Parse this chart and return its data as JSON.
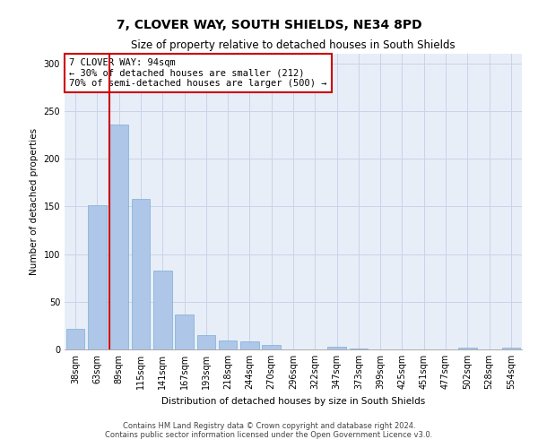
{
  "title": "7, CLOVER WAY, SOUTH SHIELDS, NE34 8PD",
  "subtitle": "Size of property relative to detached houses in South Shields",
  "xlabel": "Distribution of detached houses by size in South Shields",
  "ylabel": "Number of detached properties",
  "categories": [
    "38sqm",
    "63sqm",
    "89sqm",
    "115sqm",
    "141sqm",
    "167sqm",
    "193sqm",
    "218sqm",
    "244sqm",
    "270sqm",
    "296sqm",
    "322sqm",
    "347sqm",
    "373sqm",
    "399sqm",
    "425sqm",
    "451sqm",
    "477sqm",
    "502sqm",
    "528sqm",
    "554sqm"
  ],
  "values": [
    22,
    151,
    236,
    158,
    83,
    37,
    15,
    9,
    8,
    5,
    0,
    0,
    3,
    1,
    0,
    0,
    0,
    0,
    2,
    0,
    2
  ],
  "bar_color": "#aec6e8",
  "bar_edge_color": "#7aafd4",
  "grid_color": "#c8d4e8",
  "background_color": "#e8eef8",
  "vline_color": "#cc0000",
  "vline_x_index": 2,
  "annotation_text": "7 CLOVER WAY: 94sqm\n← 30% of detached houses are smaller (212)\n70% of semi-detached houses are larger (500) →",
  "annotation_box_facecolor": "#ffffff",
  "annotation_box_edgecolor": "#cc0000",
  "footer": "Contains HM Land Registry data © Crown copyright and database right 2024.\nContains public sector information licensed under the Open Government Licence v3.0.",
  "ylim": [
    0,
    310
  ],
  "yticks": [
    0,
    50,
    100,
    150,
    200,
    250,
    300
  ],
  "title_fontsize": 10,
  "subtitle_fontsize": 8.5,
  "xlabel_fontsize": 7.5,
  "ylabel_fontsize": 7.5,
  "tick_fontsize": 7,
  "footer_fontsize": 6,
  "annotation_fontsize": 7.5
}
